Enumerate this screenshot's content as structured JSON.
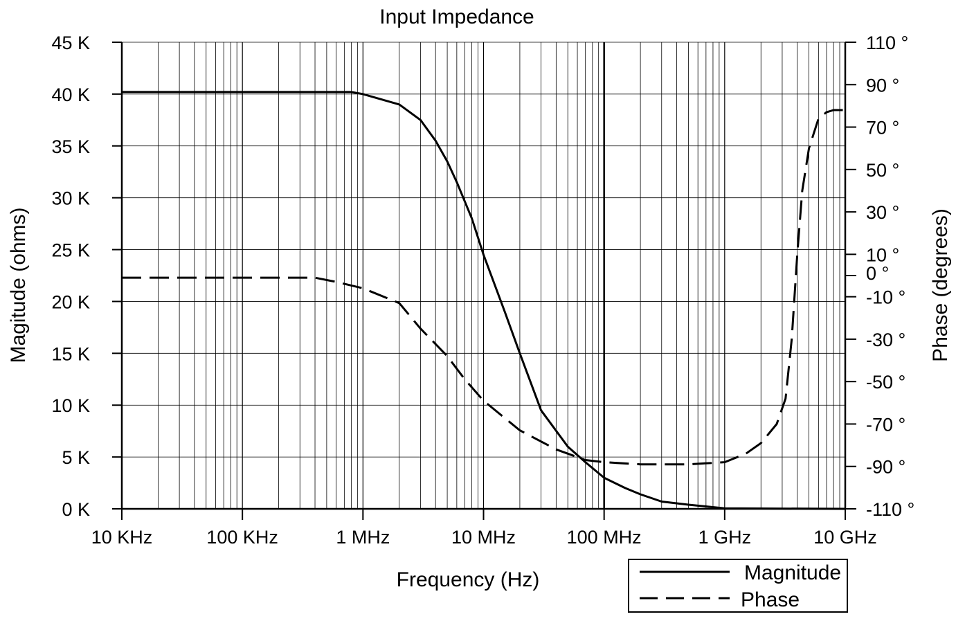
{
  "chart_data": {
    "type": "line",
    "title": "Input Impedance",
    "xlabel": "Frequency (Hz)",
    "ylabel": "Magitude (ohms)",
    "y2label": "Phase (degrees)",
    "x_scale": "log",
    "xlim": [
      10000,
      10000000000
    ],
    "ylim": [
      0,
      45000
    ],
    "y2lim": [
      -110,
      110
    ],
    "grid": true,
    "legend_position": "bottom-right",
    "x_ticks": [
      {
        "value": 10000,
        "label": "10 KHz"
      },
      {
        "value": 100000,
        "label": "100 KHz"
      },
      {
        "value": 1000000,
        "label": "1 MHz"
      },
      {
        "value": 10000000,
        "label": "10 MHz"
      },
      {
        "value": 100000000,
        "label": "100 MHz"
      },
      {
        "value": 1000000000,
        "label": "1 GHz"
      },
      {
        "value": 10000000000,
        "label": "10 GHz"
      }
    ],
    "y_ticks": [
      {
        "value": 0,
        "label": "0 K"
      },
      {
        "value": 5000,
        "label": "5 K"
      },
      {
        "value": 10000,
        "label": "10 K"
      },
      {
        "value": 15000,
        "label": "15 K"
      },
      {
        "value": 20000,
        "label": "20 K"
      },
      {
        "value": 25000,
        "label": "25 K"
      },
      {
        "value": 30000,
        "label": "30 K"
      },
      {
        "value": 35000,
        "label": "35 K"
      },
      {
        "value": 40000,
        "label": "40 K"
      },
      {
        "value": 45000,
        "label": "45 K"
      }
    ],
    "y2_ticks": [
      {
        "value": 110,
        "label": "110 °"
      },
      {
        "value": 90,
        "label": "90 °"
      },
      {
        "value": 70,
        "label": "70 °"
      },
      {
        "value": 50,
        "label": "50 °"
      },
      {
        "value": 30,
        "label": "30 °"
      },
      {
        "value": 10,
        "label": "10 °"
      },
      {
        "value": 0,
        "label": "0 °"
      },
      {
        "value": -10,
        "label": "-10 °"
      },
      {
        "value": -30,
        "label": "-30 °"
      },
      {
        "value": -50,
        "label": "-50 °"
      },
      {
        "value": -70,
        "label": "-70 °"
      },
      {
        "value": -90,
        "label": "-90 °"
      },
      {
        "value": -110,
        "label": "-110 °"
      }
    ],
    "series": [
      {
        "name": "Magnitude",
        "axis": "left",
        "style": "solid",
        "points": [
          {
            "x": 10000,
            "y": 40200
          },
          {
            "x": 800000,
            "y": 40200
          },
          {
            "x": 1000000,
            "y": 40000
          },
          {
            "x": 2000000,
            "y": 39000
          },
          {
            "x": 3000000,
            "y": 37500
          },
          {
            "x": 4000000,
            "y": 35500
          },
          {
            "x": 5000000,
            "y": 33500
          },
          {
            "x": 6000000,
            "y": 31500
          },
          {
            "x": 8000000,
            "y": 28000
          },
          {
            "x": 10000000,
            "y": 24500
          },
          {
            "x": 15000000,
            "y": 19000
          },
          {
            "x": 20000000,
            "y": 15000
          },
          {
            "x": 30000000,
            "y": 9500
          },
          {
            "x": 50000000,
            "y": 6000
          },
          {
            "x": 70000000,
            "y": 4500
          },
          {
            "x": 100000000,
            "y": 3000
          },
          {
            "x": 150000000,
            "y": 2000
          },
          {
            "x": 200000000,
            "y": 1400
          },
          {
            "x": 300000000,
            "y": 700
          },
          {
            "x": 500000000,
            "y": 400
          },
          {
            "x": 1000000000,
            "y": 50
          },
          {
            "x": 10000000000,
            "y": 0
          }
        ]
      },
      {
        "name": "Phase",
        "axis": "right",
        "style": "dashed",
        "points": [
          {
            "x": 10000,
            "y": -1
          },
          {
            "x": 400000,
            "y": -1
          },
          {
            "x": 600000,
            "y": -3
          },
          {
            "x": 1000000,
            "y": -6
          },
          {
            "x": 2000000,
            "y": -13
          },
          {
            "x": 3000000,
            "y": -25
          },
          {
            "x": 5000000,
            "y": -38
          },
          {
            "x": 7000000,
            "y": -49
          },
          {
            "x": 10000000,
            "y": -59
          },
          {
            "x": 20000000,
            "y": -73
          },
          {
            "x": 40000000,
            "y": -82
          },
          {
            "x": 70000000,
            "y": -87
          },
          {
            "x": 100000000,
            "y": -88
          },
          {
            "x": 200000000,
            "y": -89
          },
          {
            "x": 500000000,
            "y": -89
          },
          {
            "x": 1000000000,
            "y": -88
          },
          {
            "x": 1500000000,
            "y": -84
          },
          {
            "x": 2000000000,
            "y": -79
          },
          {
            "x": 2700000000,
            "y": -70
          },
          {
            "x": 3200000000,
            "y": -58
          },
          {
            "x": 3600000000,
            "y": -30
          },
          {
            "x": 4000000000,
            "y": 10
          },
          {
            "x": 4400000000,
            "y": 40
          },
          {
            "x": 5000000000,
            "y": 60
          },
          {
            "x": 6000000000,
            "y": 74
          },
          {
            "x": 7000000000,
            "y": 77
          },
          {
            "x": 8000000000,
            "y": 78
          },
          {
            "x": 10000000000,
            "y": 78
          }
        ]
      }
    ]
  }
}
